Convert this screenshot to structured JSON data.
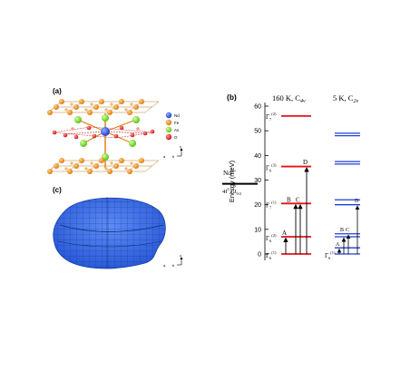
{
  "panels": {
    "a": {
      "label": "(a)",
      "legend": [
        {
          "symbol": "Nd",
          "color": "#1f3fd6"
        },
        {
          "symbol": "Fe",
          "color": "#f08a12"
        },
        {
          "symbol": "As",
          "color": "#7ad63a"
        },
        {
          "symbol": "O",
          "color": "#d81e1e"
        }
      ],
      "axes": {
        "a": "a",
        "b": "b",
        "c": "c"
      }
    },
    "b": {
      "label": "(b)",
      "col1_title": "160 K, C",
      "col1_sub": "4v",
      "col2_title": "5 K, C",
      "col2_sub": "2v",
      "ion_label": "Nd",
      "ion_sup": "3+",
      "config_label": "4f",
      "config_sup": "3",
      "term_sep": ", ",
      "term_sup": "4",
      "term_label": "I",
      "term_sub": "9/2",
      "transition_letters": [
        "A",
        "B",
        "C",
        "D",
        "A",
        "B",
        "C",
        "D"
      ],
      "level_labels": [
        {
          "main": "Γ",
          "sub": "6",
          "sup": "(1)"
        },
        {
          "main": "Γ",
          "sub": "6",
          "sup": "(2)"
        },
        {
          "main": "Γ",
          "sub": "7",
          "sup": "(1)"
        },
        {
          "main": "Γ",
          "sub": "6",
          "sup": "(3)"
        },
        {
          "main": "Γ",
          "sub": "7",
          "sup": "(2)"
        },
        {
          "main": "Γ",
          "sub": "6",
          "sup": "(1)"
        }
      ]
    },
    "c": {
      "label": "(c)",
      "axes": {
        "a": "a",
        "b": "b",
        "c": "c"
      }
    }
  },
  "chart_data": {
    "type": "energy-level diagram",
    "ylabel": "Energy (meV)",
    "ylim": [
      -3,
      63
    ],
    "yticks": [
      "0",
      "10",
      "20",
      "30",
      "40",
      "50",
      "60"
    ],
    "ground_term_energy": 28.5,
    "series": [
      {
        "name": "160 K, C4v",
        "color": "#e0141b",
        "levels": [
          0,
          7,
          20.5,
          35.5,
          56
        ]
      },
      {
        "name": "5 K, C2v",
        "color": "#1f3fd6",
        "levels": [
          0,
          2.5,
          7,
          8.2,
          20,
          22,
          36.5,
          37.5,
          48,
          49
        ]
      }
    ],
    "transitions_160K": [
      {
        "label": "A",
        "to": 7
      },
      {
        "label": "B",
        "to": 20.5
      },
      {
        "label": "C",
        "to": 20.5
      },
      {
        "label": "D",
        "to": 35.5
      }
    ],
    "transitions_5K": [
      {
        "label": "A",
        "to": 2.5
      },
      {
        "label": "B",
        "to": 7
      },
      {
        "label": "C",
        "to": 8.2
      },
      {
        "label": "D",
        "to": 20
      }
    ]
  }
}
